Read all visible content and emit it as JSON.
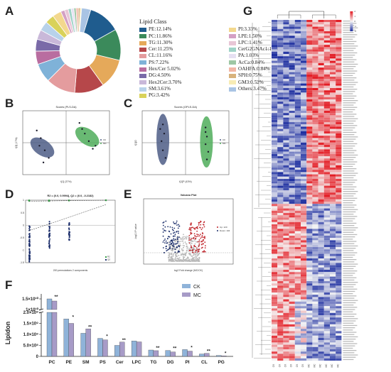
{
  "panels": {
    "A": "A",
    "B": "B",
    "C": "C",
    "D": "D",
    "E": "E",
    "F": "F",
    "G": "G"
  },
  "chart_data": [
    {
      "type": "pie",
      "panel": "A",
      "legend_title": "Lipid Class",
      "slices": [
        {
          "label": "PE:12.14%",
          "value": 12.14,
          "color": "#1f5c8e"
        },
        {
          "label": "PC:11.86%",
          "value": 11.86,
          "color": "#3b8a5b"
        },
        {
          "label": "TG:11.30%",
          "value": 11.3,
          "color": "#e5a95a"
        },
        {
          "label": "Cer:11.25%",
          "value": 11.25,
          "color": "#b6474a"
        },
        {
          "label": "CL:11.16%",
          "value": 11.16,
          "color": "#e49c9e"
        },
        {
          "label": "PS:7.22%",
          "value": 7.22,
          "color": "#7fb2d8"
        },
        {
          "label": "Hex/Cer 5.02%",
          "value": 5.02,
          "color": "#b96da0"
        },
        {
          "label": "DG:4.50%",
          "value": 4.5,
          "color": "#7a6aa8"
        },
        {
          "label": "Hex2Cer:3.70%",
          "value": 3.7,
          "color": "#c9b8d9"
        },
        {
          "label": "SM:3.61%",
          "value": 3.61,
          "color": "#b8d2ea"
        },
        {
          "label": "PG:3.42%",
          "value": 3.42,
          "color": "#d9d25a"
        },
        {
          "label": "PI:3.33%",
          "value": 3.33,
          "color": "#f3d88e"
        },
        {
          "label": "LPE:1.50%",
          "value": 1.5,
          "color": "#d4a0c4"
        },
        {
          "label": "LPC:1.41%",
          "value": 1.41,
          "color": "#e8c6d6"
        },
        {
          "label": "CerG2GNAc1:1.13%",
          "value": 1.13,
          "color": "#9fd3c7"
        },
        {
          "label": "PA:1.03%",
          "value": 1.03,
          "color": "#e6e0f2"
        },
        {
          "label": "AcCa:0.84%",
          "value": 0.84,
          "color": "#9ec7a4"
        },
        {
          "label": "OAHFA:0.84%",
          "value": 0.84,
          "color": "#f2b7a6"
        },
        {
          "label": "SPH:0.75%",
          "value": 0.75,
          "color": "#d8b27c"
        },
        {
          "label": "GM3:0.52%",
          "value": 0.52,
          "color": "#f7ecb5"
        },
        {
          "label": "Others:3.47%",
          "value": 3.47,
          "color": "#a9c4e4"
        }
      ]
    },
    {
      "type": "scatter",
      "panel": "B",
      "title": "Scores (PLS-DA)",
      "xlabel": "t[1] (37%)",
      "ylabel": "t[2] (17%)",
      "legend": [
        "CK",
        "MC"
      ],
      "colors": {
        "CK": "#4d5d86",
        "MC": "#4fad5b"
      },
      "series": [
        {
          "name": "CK",
          "points": [
            [
              -2.2,
              0.8
            ],
            [
              -1.9,
              0.3
            ],
            [
              -1.6,
              -0.5
            ],
            [
              -1.3,
              -1.0
            ],
            [
              -1.7,
              -1.3
            ],
            [
              -2.0,
              -0.2
            ]
          ]
        },
        {
          "name": "MC",
          "points": [
            [
              1.0,
              1.3
            ],
            [
              1.4,
              0.6
            ],
            [
              1.7,
              0.1
            ],
            [
              2.0,
              -0.4
            ],
            [
              2.2,
              -0.2
            ],
            [
              1.2,
              0.9
            ]
          ]
        }
      ]
    },
    {
      "type": "scatter",
      "panel": "C",
      "title": "Scores (OPLS-DA)",
      "xlabel": "t[1]P (43%)",
      "ylabel": "t[1]O",
      "legend": [
        "CK",
        "MC"
      ],
      "colors": {
        "CK": "#4d5d86",
        "MC": "#4fad5b"
      },
      "series": [
        {
          "name": "CK",
          "points": [
            [
              -1.7,
              1.2
            ],
            [
              -1.6,
              0.6
            ],
            [
              -1.8,
              0.1
            ],
            [
              -1.7,
              -0.5
            ],
            [
              -1.5,
              -1.0
            ],
            [
              -1.9,
              0.9
            ]
          ]
        },
        {
          "name": "MC",
          "points": [
            [
              1.5,
              1.0
            ],
            [
              1.6,
              0.4
            ],
            [
              1.5,
              -0.1
            ],
            [
              1.7,
              -0.6
            ],
            [
              1.6,
              -1.1
            ],
            [
              1.5,
              0.7
            ]
          ]
        }
      ]
    },
    {
      "type": "scatter",
      "panel": "D",
      "title": "R2 = (0.0, 0.9994), Q2 = (0.0, -0.2182)",
      "xlabel": "200 permutations 2 components",
      "ylabel": "",
      "legend": [
        "R2",
        "Q2"
      ],
      "ylim": [
        -1.5,
        1.0
      ],
      "yticks": [
        "1",
        "0.5",
        "0",
        "-0.5",
        "-1",
        "-1.5"
      ]
    },
    {
      "type": "scatter",
      "panel": "E",
      "title": "Volcano Plot",
      "xlabel": "log2 Fold change (MC/CK)",
      "ylabel": "-log10 P value",
      "legend": [
        "Up: 120",
        "Down: 104"
      ],
      "colors": {
        "up": "#c0262c",
        "down": "#1c2e6b",
        "ns": "#b9b9b9"
      }
    },
    {
      "type": "bar",
      "panel": "F",
      "ylabel": "Lipidon",
      "legend": [
        "CK",
        "MC"
      ],
      "colors": {
        "CK": "#8fb3d9",
        "MC": "#a79bc7"
      },
      "categories": [
        "PC",
        "PE",
        "SM",
        "PS",
        "Cer",
        "LPC",
        "TG",
        "DG",
        "PI",
        "CL",
        "PG"
      ],
      "series": [
        {
          "name": "CK",
          "values": [
            15000000000.0,
            1700000000.0,
            1050000000.0,
            820000000.0,
            500000000.0,
            700000000.0,
            290000000.0,
            270000000.0,
            310000000.0,
            110000000.0,
            45000000.0
          ]
        },
        {
          "name": "MC",
          "values": [
            14000000000.0,
            1500000000.0,
            1250000000.0,
            750000000.0,
            650000000.0,
            660000000.0,
            260000000.0,
            200000000.0,
            240000000.0,
            140000000.0,
            28000000.0
          ]
        }
      ],
      "significance": [
        "**",
        "*",
        "**",
        "*",
        "**",
        "",
        "**",
        "**",
        "*",
        "**",
        "*"
      ],
      "yticks_upper": [
        "1.5×10¹⁰",
        "1×10¹⁰"
      ],
      "yticks_lower": [
        "2.0×10⁹",
        "1.5×10⁹",
        "1.0×10⁹",
        "5.0×10⁸",
        "0"
      ]
    },
    {
      "type": "heatmap",
      "panel": "G",
      "colorbar": [
        "2",
        "1",
        "0",
        "-1",
        "-2"
      ],
      "columns": [
        "CK",
        "CK",
        "CK",
        "CK",
        "CK",
        "CK",
        "MC",
        "MC",
        "MC",
        "MC",
        "MC",
        "MC"
      ],
      "palette": {
        "high": "#e31b23",
        "mid": "#f5f5f5",
        "low": "#1e2fa0"
      }
    }
  ]
}
